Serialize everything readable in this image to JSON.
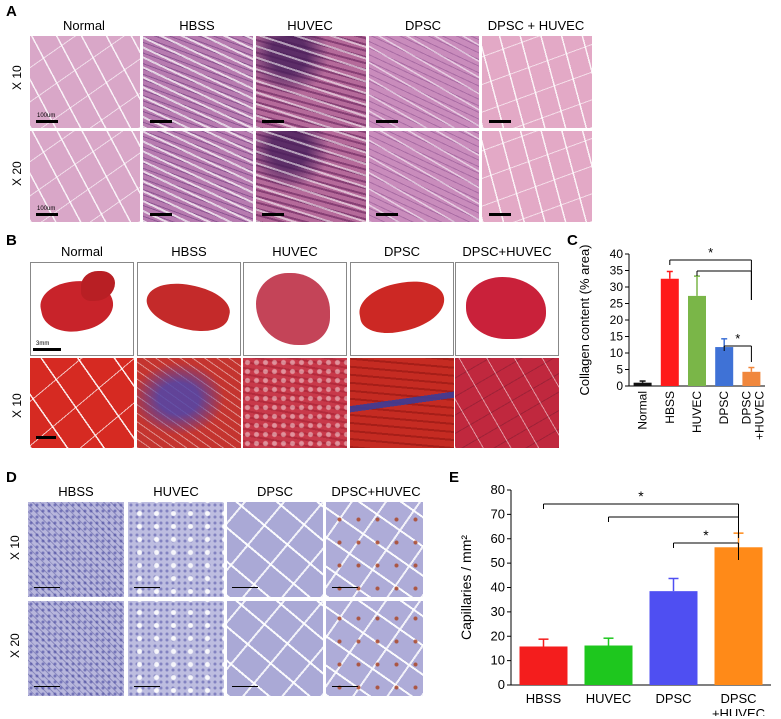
{
  "panel_a": {
    "label": "A",
    "columns": [
      "Normal",
      "HBSS",
      "HUVEC",
      "DPSC",
      "DPSC + HUVEC"
    ],
    "rows": [
      "X 10",
      "X 20"
    ],
    "scale_labels": [
      "100um",
      "100um"
    ]
  },
  "panel_b": {
    "label": "B",
    "columns": [
      "Normal",
      "HBSS",
      "HUVEC",
      "DPSC",
      "DPSC+HUVEC"
    ],
    "row_label": "X 10",
    "scale_label": "3mm"
  },
  "panel_c": {
    "label": "C"
  },
  "panel_d": {
    "label": "D",
    "columns": [
      "HBSS",
      "HUVEC",
      "DPSC",
      "DPSC+HUVEC"
    ],
    "rows": [
      "X 10",
      "X 20"
    ]
  },
  "panel_e": {
    "label": "E"
  },
  "chart_data": [
    {
      "panel": "C",
      "type": "bar",
      "categories": [
        "Normal",
        "HBSS",
        "HUVEC",
        "DPSC",
        "DPSC\n+HUVEC"
      ],
      "values": [
        1,
        32.5,
        27.3,
        11.8,
        4.3
      ],
      "errors": [
        0.5,
        2.2,
        6.0,
        2.5,
        1.3
      ],
      "colors": [
        "#111111",
        "#ff1a1a",
        "#7ab648",
        "#3f72d6",
        "#f0873c"
      ],
      "ylabel": "Collagen content (% area)",
      "ylim": [
        0,
        40
      ],
      "yticks": [
        0,
        5,
        10,
        15,
        20,
        25,
        30,
        35,
        40
      ],
      "significance": [
        {
          "from": 1,
          "to": 4,
          "label": "*"
        },
        {
          "from": 2,
          "to": 4,
          "label": ""
        },
        {
          "from": 3,
          "to": 4,
          "label": "*"
        }
      ]
    },
    {
      "panel": "E",
      "type": "bar",
      "categories": [
        "HBSS",
        "HUVEC",
        "DPSC",
        "DPSC\n+HUVEC"
      ],
      "values": [
        15.8,
        16.2,
        38.5,
        56.5
      ],
      "errors": [
        3.0,
        3.0,
        5.2,
        5.8
      ],
      "colors": [
        "#f41d1d",
        "#1ec71e",
        "#4f4ff2",
        "#ff8a18"
      ],
      "ylabel": "Capillaries / mm²",
      "ylim": [
        0,
        80
      ],
      "yticks": [
        0,
        10,
        20,
        30,
        40,
        50,
        60,
        70,
        80
      ],
      "significance": [
        {
          "from": 0,
          "to": 3,
          "label": "*"
        },
        {
          "from": 1,
          "to": 3,
          "label": ""
        },
        {
          "from": 2,
          "to": 3,
          "label": "*"
        }
      ]
    }
  ]
}
